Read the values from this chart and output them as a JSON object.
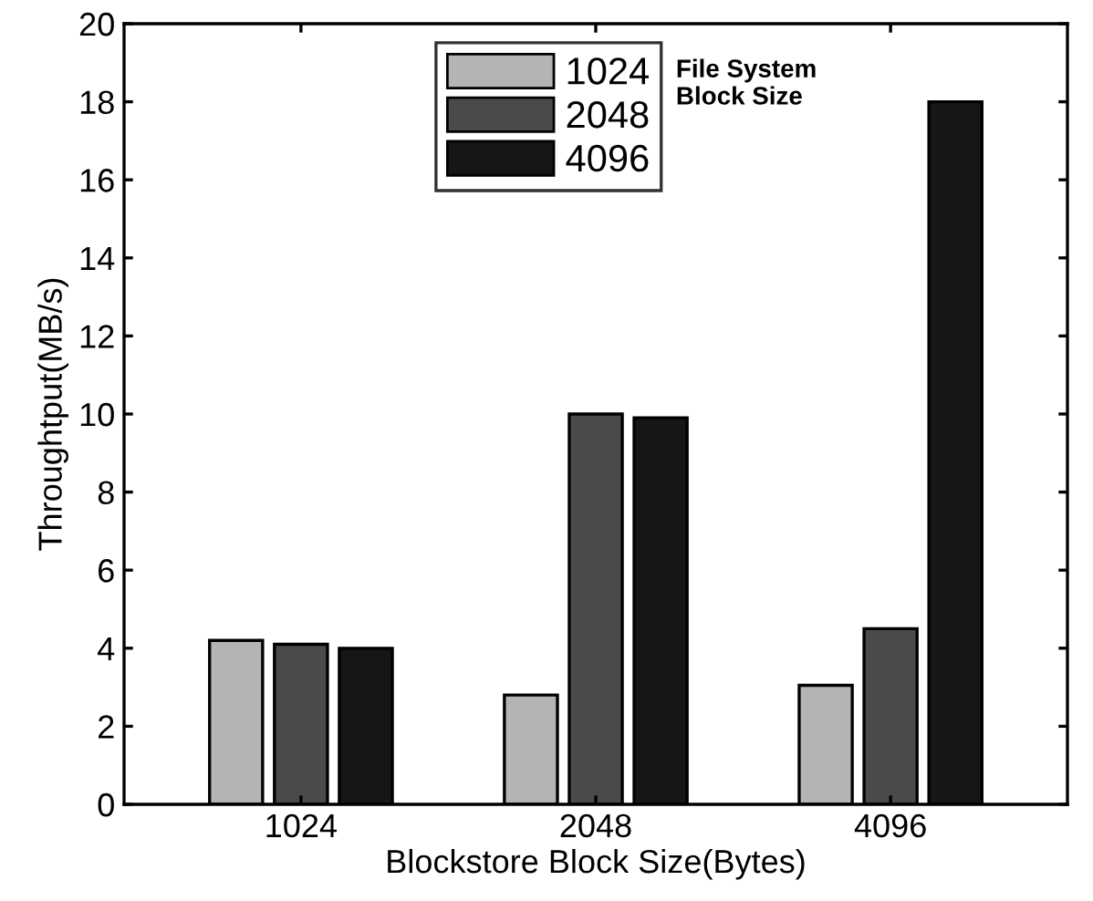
{
  "chart_data": {
    "type": "bar",
    "xlabel": "Blockstore Block Size(Bytes)",
    "ylabel": "Throughtput(MB/s)",
    "legend_title": "File System\nBlock Size",
    "categories": [
      "1024",
      "2048",
      "4096"
    ],
    "series": [
      {
        "name": "1024",
        "color": "#b4b4b4",
        "values": [
          4.2,
          2.8,
          3.05
        ]
      },
      {
        "name": "2048",
        "color": "#4a4a4a",
        "values": [
          4.1,
          10.0,
          4.5
        ]
      },
      {
        "name": "4096",
        "color": "#161616",
        "values": [
          4.0,
          9.9,
          18.0
        ]
      }
    ],
    "ylim": [
      0,
      20
    ],
    "yticks": [
      0,
      2,
      4,
      6,
      8,
      10,
      12,
      14,
      16,
      18,
      20
    ],
    "grid": false,
    "legend": "top"
  }
}
